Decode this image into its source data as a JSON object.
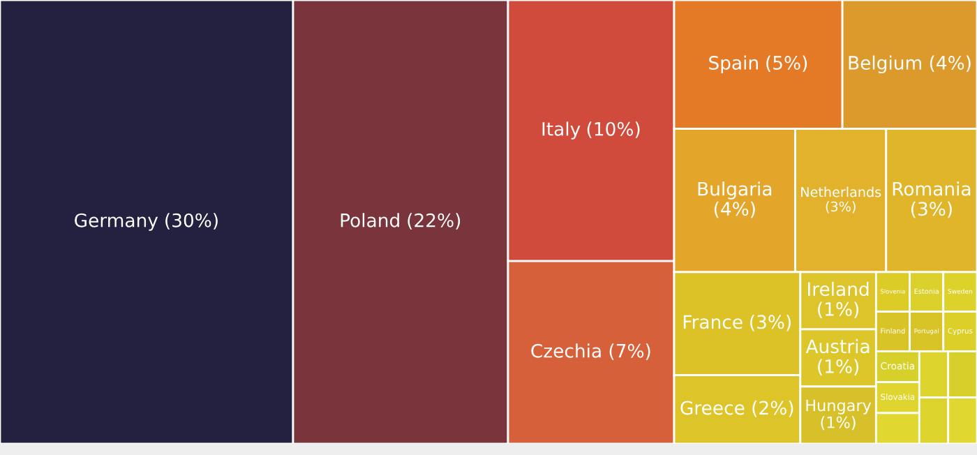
{
  "chart_data": {
    "type": "other",
    "categories": [
      "Germany",
      "Poland",
      "Italy",
      "Czechia",
      "Spain",
      "Belgium",
      "Bulgaria",
      "Netherlands",
      "Romania",
      "France",
      "Greece",
      "Ireland",
      "Austria",
      "Hungary",
      "Slovenia",
      "Estonia",
      "Sweden",
      "Finland",
      "Portugal",
      "Cyprus",
      "Croatia",
      "Slovakia",
      null,
      null,
      null,
      null,
      null
    ],
    "values": [
      30,
      22,
      10,
      7,
      5,
      4,
      4,
      3,
      3,
      3,
      2,
      1,
      1,
      1,
      null,
      null,
      null,
      null,
      null,
      null,
      null,
      null,
      null,
      null,
      null,
      null,
      null
    ],
    "value_labels": [
      "(30%)",
      "(22%)",
      "(10%)",
      "(7%)",
      "(5%)",
      "(4%)",
      "(4%)",
      "(3%)",
      "(3%)",
      "(3%)",
      "(2%)",
      "(1%)",
      "(1%)",
      "(1%)",
      null,
      null,
      null,
      null,
      null,
      null,
      null,
      null,
      null,
      null,
      null,
      null,
      null
    ],
    "colors": [
      "#23213f",
      "#7a343c",
      "#d04b3b",
      "#d5603a",
      "#e57a26",
      "#dc9a2c",
      "#e3a52a",
      "#e2b22c",
      "#e0b52a",
      "#dcc226",
      "#ddc428",
      "#dcc42a",
      "#dcc62a",
      "#d8c02a",
      "#dccc25",
      "#dcd02a",
      "#dcd22a",
      "#d9c428",
      "#d9c428",
      "#dccf28",
      "#d8d02a",
      "#dfd52e",
      "#e0d830",
      "#dcd42c",
      "#d8d02a",
      "#dcd42c",
      "#e0d830"
    ]
  }
}
